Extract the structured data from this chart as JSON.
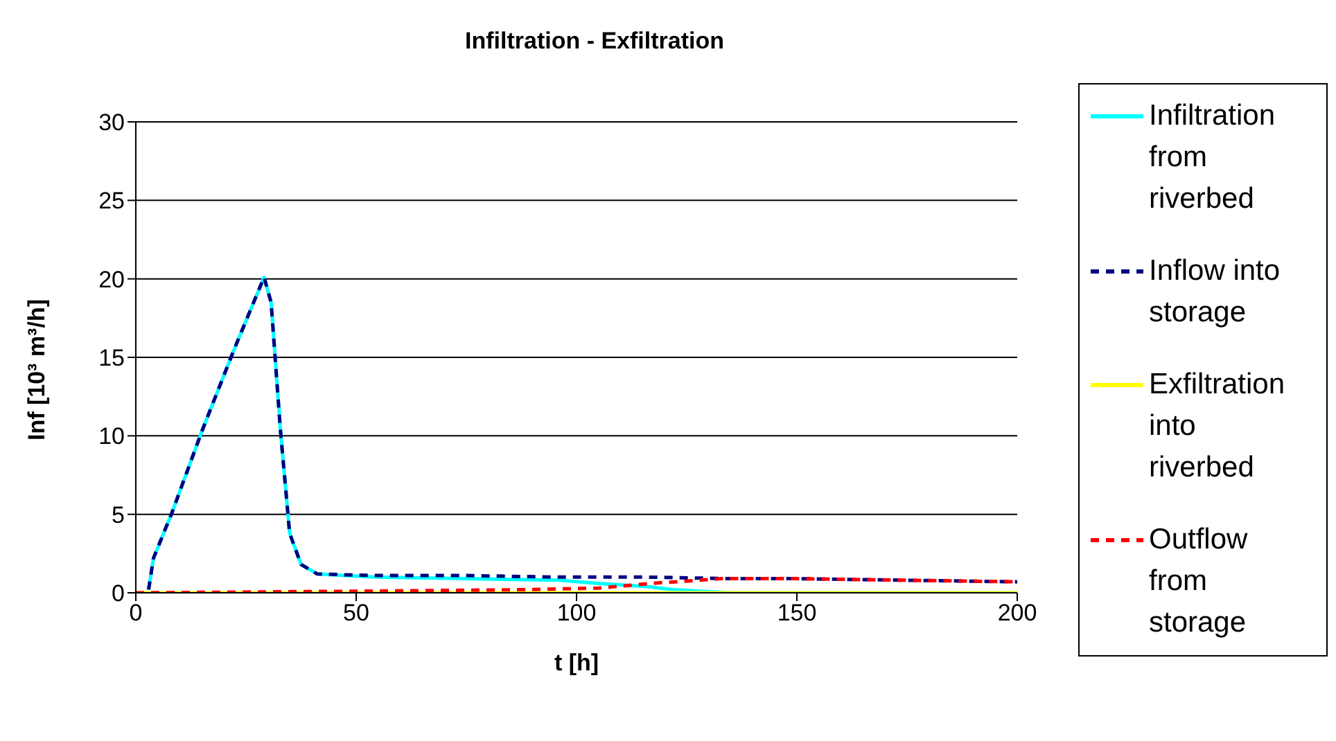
{
  "chart_data": {
    "type": "line",
    "title": "Infiltration - Exfiltration",
    "xlabel": "t [h]",
    "ylabel": "Inf [10³ m³/h]",
    "xlim": [
      0,
      200
    ],
    "xticks": [
      0,
      50,
      100,
      150,
      200
    ],
    "ylim": [
      0,
      30
    ],
    "yticks": [
      0,
      5,
      10,
      15,
      20,
      25,
      30
    ],
    "grid": "y",
    "legend": "right",
    "marker": "none",
    "series": [
      {
        "name": "Infiltration from riverbed",
        "color": "#00ffff",
        "line_style": "solid",
        "x": [
          2.9,
          4,
          8.2,
          15,
          22.3,
          29.1,
          30.7,
          32.8,
          34.9,
          37.5,
          41.2,
          54,
          75,
          96,
          105,
          116,
          122,
          128,
          135,
          200
        ],
        "values": [
          0.2,
          2.2,
          5.1,
          10.3,
          15.5,
          20.1,
          18.5,
          10.4,
          3.8,
          1.8,
          1.2,
          1,
          0.9,
          0.8,
          0.6,
          0.4,
          0.2,
          0.1,
          0,
          0
        ]
      },
      {
        "name": "Inflow into storage",
        "color": "#000080",
        "line_style": "dashed",
        "x": [
          2.9,
          4,
          8.2,
          15,
          22.3,
          29.1,
          30.7,
          32.8,
          34.9,
          37.5,
          41.2,
          54,
          75,
          96,
          116,
          135,
          150,
          175,
          200
        ],
        "values": [
          0.2,
          2.2,
          5.1,
          10.3,
          15.5,
          20.1,
          18.5,
          10.4,
          3.8,
          1.8,
          1.2,
          1.1,
          1.1,
          1,
          1,
          0.9,
          0.9,
          0.8,
          0.7
        ]
      },
      {
        "name": "Exfiltration into riverbed",
        "color": "#ffff00",
        "line_style": "solid",
        "x": [
          0,
          200
        ],
        "values": [
          0,
          0
        ]
      },
      {
        "name": "Outflow from storage",
        "color": "#ff0000",
        "line_style": "dashed",
        "x": [
          0,
          50,
          89,
          105,
          117,
          133,
          135,
          150,
          175,
          200
        ],
        "values": [
          0,
          0.1,
          0.2,
          0.3,
          0.6,
          0.9,
          0.9,
          0.9,
          0.8,
          0.7
        ]
      }
    ]
  }
}
